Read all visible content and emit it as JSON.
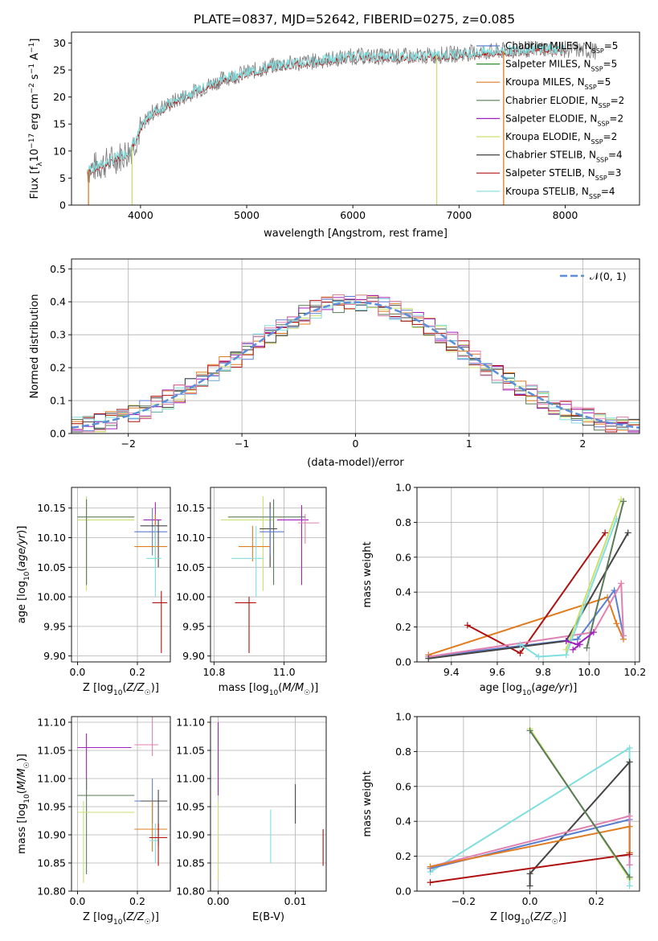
{
  "figure": {
    "title": "PLATE=0837, MJD=52642, FIBERID=0275, z=0.085"
  },
  "colors": {
    "Chabrier MILES": "#5b7fd0",
    "Salpeter MILES": "#2a8c2a",
    "Kroupa MILES": "#e07b1f",
    "Chabrier ELODIE": "#5a7a5a",
    "Salpeter ELODIE": "#a020c0",
    "Kroupa ELODIE": "#c9e070",
    "Chabrier STELIB": "#444444",
    "Salpeter STELIB": "#b01010",
    "Kroupa STELIB": "#80dede",
    "normal": "#5b8fd8",
    "pink": "#e080b0"
  },
  "chart_data": [
    {
      "id": "spectrum",
      "type": "line",
      "xlabel": "wavelength [Angstrom, rest frame]",
      "ylabel": "Flux [f_λ10^-17 erg cm^-2 s^-1 A^-1]",
      "xlim": [
        3350,
        8700
      ],
      "ylim": [
        0,
        32
      ],
      "xticks": [
        4000,
        5000,
        6000,
        7000,
        8000
      ],
      "yticks": [
        0,
        5,
        10,
        15,
        20,
        25,
        30
      ],
      "continuum": {
        "x": [
          3500,
          3700,
          3900,
          4000,
          4100,
          4300,
          4500,
          4800,
          5000,
          5300,
          5600,
          6000,
          6300,
          6600,
          7000,
          7400,
          7800,
          8300
        ],
        "y": [
          6.5,
          8,
          10,
          14,
          17,
          19,
          21,
          23.5,
          24.5,
          26,
          26.5,
          27.5,
          27.5,
          27.5,
          28,
          28.5,
          29,
          28.5
        ]
      },
      "legend": [
        {
          "label": "Chabrier MILES, N",
          "ssp": "5"
        },
        {
          "label": "Salpeter MILES, N",
          "ssp": "5"
        },
        {
          "label": "Kroupa MILES, N",
          "ssp": "5"
        },
        {
          "label": "Chabrier ELODIE, N",
          "ssp": "2"
        },
        {
          "label": "Salpeter ELODIE, N",
          "ssp": "2"
        },
        {
          "label": "Kroupa ELODIE, N",
          "ssp": "2"
        },
        {
          "label": "Chabrier STELIB, N",
          "ssp": "4"
        },
        {
          "label": "Salpeter STELIB, N",
          "ssp": "3"
        },
        {
          "label": "Kroupa STELIB, N",
          "ssp": "4"
        }
      ],
      "legend_sub": "SSP",
      "legend_placement": "upper-right",
      "grid": false
    },
    {
      "id": "residuals",
      "type": "line",
      "xlabel": "(data-model)/error",
      "ylabel": "Normed distribution",
      "xlim": [
        -2.5,
        2.5
      ],
      "ylim": [
        0,
        0.53
      ],
      "xticks": [
        -2,
        -1,
        0,
        1,
        2
      ],
      "xticklabels": [
        "−2",
        "−1",
        "0",
        "1",
        "2"
      ],
      "yticks": [
        0.0,
        0.1,
        0.2,
        0.3,
        0.4,
        0.5
      ],
      "yticklabels": [
        "0.0",
        "0.1",
        "0.2",
        "0.3",
        "0.4",
        "0.5"
      ],
      "normal_label": "𝒩(0, 1)",
      "legend_placement": "upper-right",
      "grid": true
    },
    {
      "id": "age_vs_Z",
      "type": "scatter",
      "xlabel": "Z [log10(Z/Z☉)]",
      "ylabel": "age  [log10(age/yr)]",
      "xlim": [
        -0.02,
        0.31
      ],
      "ylim": [
        9.89,
        10.185
      ],
      "xticks": [
        0.0,
        0.2
      ],
      "xticklabels": [
        "0.0",
        "0.2"
      ],
      "yticks": [
        9.9,
        9.95,
        10.0,
        10.05,
        10.1,
        10.15
      ],
      "yticklabels": [
        "9.90",
        "9.95",
        "10.00",
        "10.05",
        "10.10",
        "10.15"
      ],
      "points": [
        {
          "s": "Kroupa ELODIE",
          "x": 0.03,
          "xlo": 0.0,
          "xhi": 0.19,
          "y": 10.13,
          "ylo": 10.01,
          "yhi": 10.17
        },
        {
          "s": "Chabrier ELODIE",
          "x": 0.03,
          "xlo": 0.0,
          "xhi": 0.19,
          "y": 10.135,
          "ylo": 10.02,
          "yhi": 10.165
        },
        {
          "s": "Salpeter ELODIE",
          "x": 0.26,
          "xlo": 0.22,
          "xhi": 0.28,
          "y": 10.13,
          "ylo": 10.1,
          "yhi": 10.16
        },
        {
          "s": "Chabrier MILES",
          "x": 0.25,
          "xlo": 0.19,
          "xhi": 0.3,
          "y": 10.11,
          "ylo": 10.07,
          "yhi": 10.15
        },
        {
          "s": "Chabrier STELIB",
          "x": 0.27,
          "xlo": 0.21,
          "xhi": 0.3,
          "y": 10.12,
          "ylo": 10.05,
          "yhi": 10.13
        },
        {
          "s": "Kroupa MILES",
          "x": 0.26,
          "xlo": 0.19,
          "xhi": 0.3,
          "y": 10.085,
          "ylo": 10.06,
          "yhi": 10.14
        },
        {
          "s": "Kroupa STELIB",
          "x": 0.26,
          "xlo": 0.23,
          "xhi": 0.28,
          "y": 10.065,
          "ylo": 10.0,
          "yhi": 10.12
        },
        {
          "s": "Salpeter STELIB",
          "x": 0.28,
          "xlo": 0.25,
          "xhi": 0.3,
          "y": 9.99,
          "ylo": 9.905,
          "yhi": 10.01
        }
      ],
      "grid": true
    },
    {
      "id": "age_vs_mass",
      "type": "scatter",
      "xlabel": "mass [log10(M/M☉)]",
      "ylabel": "",
      "xlim": [
        10.79,
        11.12
      ],
      "ylim": [
        9.89,
        10.185
      ],
      "xticks": [
        10.8,
        11.0
      ],
      "xticklabels": [
        "10.8",
        "11.0"
      ],
      "yticks": [
        9.9,
        9.95,
        10.0,
        10.05,
        10.1,
        10.15
      ],
      "yticklabels": [
        "9.90",
        "9.95",
        "10.00",
        "10.05",
        "10.10",
        "10.15"
      ],
      "points": [
        {
          "s": "Kroupa ELODIE",
          "x": 10.94,
          "xlo": 10.82,
          "xhi": 10.97,
          "y": 10.13,
          "ylo": 10.01,
          "yhi": 10.17
        },
        {
          "s": "Chabrier ELODIE",
          "x": 10.97,
          "xlo": 10.84,
          "xhi": 11.06,
          "y": 10.135,
          "ylo": 10.02,
          "yhi": 10.165
        },
        {
          "s": "Salpeter ELODIE",
          "x": 11.05,
          "xlo": 10.98,
          "xhi": 11.07,
          "y": 10.13,
          "ylo": 10.02,
          "yhi": 10.155
        },
        {
          "s": "Chabrier STELIB",
          "x": 10.96,
          "xlo": 10.93,
          "xhi": 10.98,
          "y": 10.115,
          "ylo": 10.05,
          "yhi": 10.16
        },
        {
          "s": "Chabrier MILES",
          "x": 10.96,
          "xlo": 10.93,
          "xhi": 11.0,
          "y": 10.11,
          "ylo": 10.07,
          "yhi": 10.15
        },
        {
          "s": "pink",
          "x": 11.06,
          "xlo": 11.04,
          "xhi": 11.1,
          "y": 10.125,
          "ylo": 10.09,
          "yhi": 10.14
        },
        {
          "s": "Kroupa MILES",
          "x": 10.91,
          "xlo": 10.87,
          "xhi": 10.96,
          "y": 10.085,
          "ylo": 10.06,
          "yhi": 10.12
        },
        {
          "s": "Kroupa STELIB",
          "x": 10.92,
          "xlo": 10.85,
          "xhi": 10.94,
          "y": 10.065,
          "ylo": 10.0,
          "yhi": 10.12
        },
        {
          "s": "Salpeter STELIB",
          "x": 10.9,
          "xlo": 10.86,
          "xhi": 10.92,
          "y": 9.99,
          "ylo": 9.905,
          "yhi": 10.0
        }
      ],
      "grid": true
    },
    {
      "id": "weight_vs_age",
      "type": "line",
      "xlabel": "age  [log10(age/yr)]",
      "ylabel": "mass weight",
      "xlim": [
        9.25,
        10.22
      ],
      "ylim": [
        0,
        1.0
      ],
      "xticks": [
        9.4,
        9.6,
        9.8,
        10.0,
        10.2
      ],
      "xticklabels": [
        "9.4",
        "9.6",
        "9.8",
        "10.0",
        "10.2"
      ],
      "yticks": [
        0.0,
        0.2,
        0.4,
        0.6,
        0.8,
        1.0
      ],
      "yticklabels": [
        "0.0",
        "0.2",
        "0.4",
        "0.6",
        "0.8",
        "1.0"
      ],
      "series": [
        {
          "s": "Kroupa MILES",
          "x": [
            9.3,
            10.08,
            10.12,
            10.15
          ],
          "y": [
            0.04,
            0.37,
            0.22,
            0.13
          ]
        },
        {
          "s": "Salpeter STELIB",
          "x": [
            9.47,
            9.7,
            10.07
          ],
          "y": [
            0.21,
            0.05,
            0.74
          ]
        },
        {
          "s": "Chabrier MILES",
          "x": [
            9.3,
            9.95,
            10.11,
            10.15
          ],
          "y": [
            0.03,
            0.13,
            0.41,
            0.15
          ]
        },
        {
          "s": "pink",
          "x": [
            9.3,
            10.02,
            10.14,
            10.15
          ],
          "y": [
            0.03,
            0.17,
            0.45,
            0.15
          ]
        },
        {
          "s": "Chabrier STELIB",
          "x": [
            9.3,
            9.9,
            10.17
          ],
          "y": [
            0.02,
            0.12,
            0.74
          ]
        },
        {
          "s": "Kroupa STELIB",
          "x": [
            9.7,
            9.78,
            9.9,
            10.12
          ],
          "y": [
            0.1,
            0.03,
            0.04,
            0.82
          ]
        },
        {
          "s": "Kroupa ELODIE",
          "x": [
            9.9,
            10.14
          ],
          "y": [
            0.07,
            0.93
          ]
        },
        {
          "s": "Chabrier ELODIE",
          "x": [
            9.99,
            10.15
          ],
          "y": [
            0.08,
            0.92
          ]
        },
        {
          "s": "Salpeter ELODIE",
          "x": [
            9.93,
            9.96
          ],
          "y": [
            0.07,
            0.1
          ]
        },
        {
          "s": "Salpeter ELODIE",
          "x": [
            9.9,
            9.95,
            10.02
          ],
          "y": [
            0.12,
            0.1,
            0.17
          ]
        }
      ],
      "grid": true
    },
    {
      "id": "mass_vs_Z",
      "type": "scatter",
      "xlabel": "Z [log10(Z/Z☉)]",
      "ylabel": "mass [log10(M/M☉)]",
      "xlim": [
        -0.02,
        0.31
      ],
      "ylim": [
        10.8,
        11.11
      ],
      "xticks": [
        0.0,
        0.2
      ],
      "xticklabels": [
        "0.0",
        "0.2"
      ],
      "yticks": [
        10.8,
        10.85,
        10.9,
        10.95,
        11.0,
        11.05,
        11.1
      ],
      "yticklabels": [
        "10.80",
        "10.85",
        "10.90",
        "10.95",
        "11.00",
        "11.05",
        "11.10"
      ],
      "points": [
        {
          "s": "Salpeter ELODIE",
          "x": 0.03,
          "xlo": 0.0,
          "xhi": 0.18,
          "y": 11.055,
          "ylo": 10.98,
          "yhi": 11.08
        },
        {
          "s": "pink",
          "x": 0.25,
          "xlo": 0.19,
          "xhi": 0.27,
          "y": 11.06,
          "ylo": 11.04,
          "yhi": 11.11
        },
        {
          "s": "Chabrier ELODIE",
          "x": 0.03,
          "xlo": 0.0,
          "xhi": 0.19,
          "y": 10.97,
          "ylo": 10.83,
          "yhi": 11.0
        },
        {
          "s": "Kroupa ELODIE",
          "x": 0.02,
          "xlo": 0.0,
          "xhi": 0.19,
          "y": 10.94,
          "ylo": 10.815,
          "yhi": 10.96
        },
        {
          "s": "Chabrier MILES",
          "x": 0.25,
          "xlo": 0.19,
          "xhi": 0.3,
          "y": 10.96,
          "ylo": 10.92,
          "yhi": 11.0
        },
        {
          "s": "Chabrier STELIB",
          "x": 0.27,
          "xlo": 0.21,
          "xhi": 0.3,
          "y": 10.96,
          "ylo": 10.88,
          "yhi": 10.98
        },
        {
          "s": "Kroupa MILES",
          "x": 0.25,
          "xlo": 0.19,
          "xhi": 0.3,
          "y": 10.91,
          "ylo": 10.87,
          "yhi": 10.96
        },
        {
          "s": "Kroupa STELIB",
          "x": 0.26,
          "xlo": 0.24,
          "xhi": 0.27,
          "y": 10.89,
          "ylo": 10.85,
          "yhi": 10.92
        },
        {
          "s": "Salpeter STELIB",
          "x": 0.27,
          "xlo": 0.24,
          "xhi": 0.3,
          "y": 10.895,
          "ylo": 10.845,
          "yhi": 10.92
        }
      ],
      "grid": true
    },
    {
      "id": "mass_vs_ebv",
      "type": "scatter",
      "xlabel": "E(B-V)",
      "ylabel": "",
      "xlim": [
        -0.001,
        0.014
      ],
      "ylim": [
        10.8,
        11.11
      ],
      "xticks": [
        0.0,
        0.01
      ],
      "xticklabels": [
        "0.00",
        "0.01"
      ],
      "yticks": [
        10.8,
        10.85,
        10.9,
        10.95,
        11.0,
        11.05,
        11.1
      ],
      "yticklabels": [
        "10.80",
        "10.85",
        "10.90",
        "10.95",
        "11.00",
        "11.05",
        "11.10"
      ],
      "points": [
        {
          "s": "Salpeter ELODIE",
          "x": 0.0,
          "xlo": 0.0,
          "xhi": 0.0,
          "y": 11.05,
          "ylo": 10.97,
          "yhi": 11.1
        },
        {
          "s": "Kroupa ELODIE",
          "x": 0.0,
          "xlo": 0.0,
          "xhi": 0.0,
          "y": 10.94,
          "ylo": 10.82,
          "yhi": 10.96
        },
        {
          "s": "Chabrier STELIB",
          "x": 0.01,
          "xlo": 0.01,
          "xhi": 0.01,
          "y": 10.96,
          "ylo": 10.92,
          "yhi": 10.99
        },
        {
          "s": "Kroupa STELIB",
          "x": 0.0068,
          "xlo": 0.0068,
          "xhi": 0.0068,
          "y": 10.9,
          "ylo": 10.85,
          "yhi": 10.945
        },
        {
          "s": "Salpeter STELIB",
          "x": 0.0136,
          "xlo": 0.0136,
          "xhi": 0.0136,
          "y": 10.88,
          "ylo": 10.845,
          "yhi": 10.91
        }
      ],
      "grid": true
    },
    {
      "id": "weight_vs_Z",
      "type": "line",
      "xlabel": "Z [log10(Z/Z☉)]",
      "ylabel": "mass weight",
      "xlim": [
        -0.34,
        0.33
      ],
      "ylim": [
        0,
        1.0
      ],
      "xticks": [
        -0.2,
        0.0,
        0.2
      ],
      "xticklabels": [
        "−0.2",
        "0.0",
        "0.2"
      ],
      "yticks": [
        0.0,
        0.2,
        0.4,
        0.6,
        0.8,
        1.0
      ],
      "yticklabels": [
        "0.0",
        "0.2",
        "0.4",
        "0.6",
        "0.8",
        "1.0"
      ],
      "series": [
        {
          "s": "Kroupa STELIB",
          "x": [
            -0.3,
            0.3,
            0.3
          ],
          "y": [
            0.11,
            0.82,
            0.03
          ]
        },
        {
          "s": "Chabrier STELIB",
          "x": [
            0.0,
            0.0,
            0.3,
            0.3
          ],
          "y": [
            0.03,
            0.1,
            0.74,
            0.22
          ]
        },
        {
          "s": "Chabrier MILES",
          "x": [
            -0.3,
            0.3,
            0.3
          ],
          "y": [
            0.13,
            0.41,
            0.15
          ]
        },
        {
          "s": "pink",
          "x": [
            -0.3,
            0.3,
            0.3
          ],
          "y": [
            0.14,
            0.43,
            0.15
          ]
        },
        {
          "s": "Kroupa MILES",
          "x": [
            -0.3,
            0.3,
            0.3
          ],
          "y": [
            0.14,
            0.37,
            0.22
          ]
        },
        {
          "s": "Salpeter STELIB",
          "x": [
            -0.3,
            0.3
          ],
          "y": [
            0.05,
            0.21
          ]
        },
        {
          "s": "Kroupa ELODIE",
          "x": [
            0.0,
            0.3
          ],
          "y": [
            0.93,
            0.07
          ]
        },
        {
          "s": "Chabrier ELODIE",
          "x": [
            0.0,
            0.3
          ],
          "y": [
            0.92,
            0.08
          ]
        }
      ],
      "grid": true
    }
  ]
}
